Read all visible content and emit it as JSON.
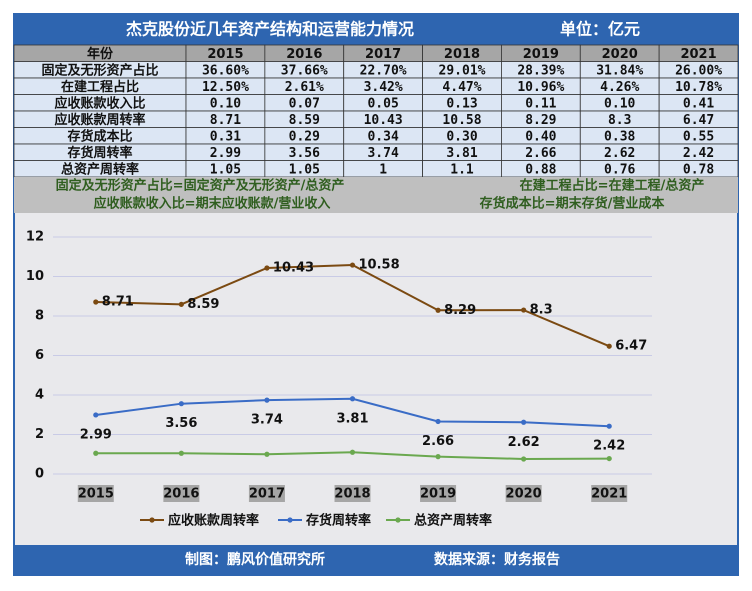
{
  "header": {
    "title": "杰克股份近几年资产结构和运营能力情况",
    "unit": "单位：亿元"
  },
  "table": {
    "columns": [
      "年份",
      "2015",
      "2016",
      "2017",
      "2018",
      "2019",
      "2020",
      "2021"
    ],
    "rows": [
      [
        "固定及无形资产占比",
        "36.60%",
        "37.66%",
        "22.70%",
        "29.01%",
        "28.39%",
        "31.84%",
        "26.00%"
      ],
      [
        "在建工程占比",
        "12.50%",
        "2.61%",
        "3.42%",
        "4.47%",
        "10.96%",
        "4.26%",
        "10.78%"
      ],
      [
        "应收账款收入比",
        "0.10",
        "0.07",
        "0.05",
        "0.13",
        "0.11",
        "0.10",
        "0.41"
      ],
      [
        "应收账款周转率",
        "8.71",
        "8.59",
        "10.43",
        "10.58",
        "8.29",
        "8.3",
        "6.47"
      ],
      [
        "存货成本比",
        "0.31",
        "0.29",
        "0.34",
        "0.30",
        "0.40",
        "0.38",
        "0.55"
      ],
      [
        "存货周转率",
        "2.99",
        "3.56",
        "3.74",
        "3.81",
        "2.66",
        "2.62",
        "2.42"
      ],
      [
        "总资产周转率",
        "1.05",
        "1.05",
        "1",
        "1.1",
        "0.88",
        "0.76",
        "0.78"
      ]
    ]
  },
  "notes": [
    [
      "固定及无形资产占比=固定资产及无形资产/总资产",
      "在建工程占比=在建工程/总资产"
    ],
    [
      "应收账款收入比=期末应收账款/营业收入",
      "存货成本比=期末存货/营业成本"
    ]
  ],
  "chart_data": {
    "type": "line",
    "categories": [
      "2015",
      "2016",
      "2017",
      "2018",
      "2019",
      "2020",
      "2021"
    ],
    "series": [
      {
        "name": "应收账款周转率",
        "color": "#7b4a12",
        "values": [
          8.71,
          8.59,
          10.43,
          10.58,
          8.29,
          8.3,
          6.47
        ],
        "show_labels": true
      },
      {
        "name": "存货周转率",
        "color": "#3a6cc6",
        "values": [
          2.99,
          3.56,
          3.74,
          3.81,
          2.66,
          2.62,
          2.42
        ],
        "show_labels": true
      },
      {
        "name": "总资产周转率",
        "color": "#6aa84f",
        "values": [
          1.05,
          1.05,
          1,
          1.1,
          0.88,
          0.76,
          0.78
        ],
        "show_labels": false
      }
    ],
    "ylim": [
      0,
      12
    ],
    "yticks": [
      0,
      2,
      4,
      6,
      8,
      10,
      12
    ],
    "grid": true,
    "legend": "bottom"
  },
  "footer": {
    "credit": "制图：鹏风价值研究所",
    "source": "数据来源：财务报告"
  }
}
